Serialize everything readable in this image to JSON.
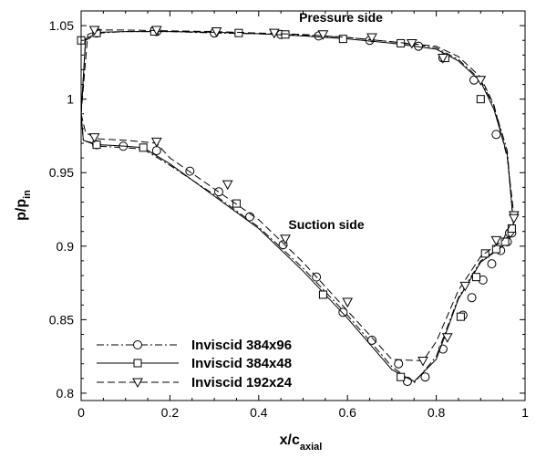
{
  "chart_data": {
    "type": "line",
    "xlabel_main": "x/c",
    "xlabel_sub": "axial",
    "ylabel_main": "p/p",
    "ylabel_sub": "in",
    "xlim": [
      0,
      1
    ],
    "ylim": [
      0.795,
      1.06
    ],
    "xticks": [
      0,
      0.2,
      0.4,
      0.6,
      0.8,
      1
    ],
    "xtick_labels": [
      "0",
      "0.2",
      "0.4",
      "0.6",
      "0.8",
      "1"
    ],
    "yticks": [
      0.8,
      0.85,
      0.9,
      0.95,
      1,
      1.05
    ],
    "ytick_labels": [
      "0.8",
      "0.85",
      "0.9",
      "0.95",
      "1",
      "1.05"
    ],
    "grid": false,
    "legend_position": "bottom-left",
    "annotations": [
      {
        "text": "Pressure side",
        "x": 0.45,
        "y": 1.0535
      },
      {
        "text": "Suction side",
        "x": 0.41,
        "y": 0.9275
      }
    ],
    "series": [
      {
        "name": "Inviscid 384x96",
        "line": "dashdot",
        "marker": "circle",
        "pressure_side": {
          "x": [
            0.0,
            0.01,
            0.04,
            0.1,
            0.2,
            0.3,
            0.4,
            0.5,
            0.6,
            0.7,
            0.8,
            0.85,
            0.9,
            0.93,
            0.96,
            0.975
          ],
          "y": [
            0.99,
            1.04,
            1.045,
            1.046,
            1.046,
            1.045,
            1.0445,
            1.0435,
            1.042,
            1.039,
            1.035,
            1.027,
            1.013,
            0.995,
            0.965,
            0.91
          ]
        },
        "suction_side": {
          "x": [
            0.0,
            0.005,
            0.04,
            0.1,
            0.14,
            0.2,
            0.3,
            0.4,
            0.5,
            0.6,
            0.7,
            0.75,
            0.8,
            0.85,
            0.9,
            0.95,
            0.975
          ],
          "y": [
            0.99,
            0.972,
            0.968,
            0.967,
            0.966,
            0.955,
            0.935,
            0.913,
            0.885,
            0.853,
            0.818,
            0.807,
            0.825,
            0.865,
            0.89,
            0.9,
            0.908
          ]
        },
        "markers": {
          "x": [
            0.035,
            0.17,
            0.3,
            0.45,
            0.535,
            0.65,
            0.76,
            0.815,
            0.885,
            0.935,
            0.965,
            0.035,
            0.095,
            0.17,
            0.245,
            0.31,
            0.38,
            0.455,
            0.53,
            0.59,
            0.655,
            0.715,
            0.735,
            0.775,
            0.815,
            0.86,
            0.88,
            0.905,
            0.925,
            0.945,
            0.96,
            0.97
          ],
          "y": [
            1.045,
            1.046,
            1.045,
            1.044,
            1.043,
            1.04,
            1.036,
            1.028,
            1.013,
            0.976,
            0.909,
            0.969,
            0.968,
            0.965,
            0.951,
            0.937,
            0.92,
            0.901,
            0.879,
            0.855,
            0.836,
            0.82,
            0.808,
            0.811,
            0.83,
            0.853,
            0.865,
            0.877,
            0.888,
            0.897,
            0.903,
            0.909
          ]
        }
      },
      {
        "name": "Inviscid 384x48",
        "line": "solid",
        "marker": "square",
        "pressure_side": {
          "x": [
            0.0,
            0.01,
            0.04,
            0.1,
            0.2,
            0.3,
            0.4,
            0.5,
            0.6,
            0.7,
            0.8,
            0.85,
            0.9,
            0.93,
            0.96,
            0.975
          ],
          "y": [
            0.99,
            1.041,
            1.0455,
            1.046,
            1.046,
            1.0455,
            1.0445,
            1.043,
            1.041,
            1.038,
            1.034,
            1.026,
            1.012,
            0.993,
            0.962,
            0.911
          ]
        },
        "suction_side": {
          "x": [
            0.0,
            0.005,
            0.04,
            0.1,
            0.14,
            0.2,
            0.3,
            0.4,
            0.5,
            0.6,
            0.7,
            0.75,
            0.8,
            0.85,
            0.9,
            0.95,
            0.975
          ],
          "y": [
            0.99,
            0.972,
            0.969,
            0.968,
            0.967,
            0.956,
            0.934,
            0.912,
            0.883,
            0.851,
            0.816,
            0.808,
            0.823,
            0.864,
            0.889,
            0.9,
            0.909
          ]
        },
        "markers": {
          "x": [
            0.0,
            0.035,
            0.165,
            0.355,
            0.46,
            0.59,
            0.72,
            0.82,
            0.9,
            0.97,
            0.035,
            0.14,
            0.35,
            0.545,
            0.72,
            0.855,
            0.89,
            0.91,
            0.935,
            0.955
          ],
          "y": [
            1.04,
            1.045,
            1.046,
            1.045,
            1.044,
            1.041,
            1.038,
            1.028,
            1.0,
            0.912,
            0.969,
            0.967,
            0.929,
            0.867,
            0.811,
            0.852,
            0.879,
            0.895,
            0.898,
            0.903
          ]
        }
      },
      {
        "name": "Inviscid 192x24",
        "line": "dashed",
        "marker": "triangle-down",
        "pressure_side": {
          "x": [
            0.0,
            0.015,
            0.04,
            0.1,
            0.2,
            0.3,
            0.4,
            0.5,
            0.6,
            0.7,
            0.8,
            0.85,
            0.9,
            0.93,
            0.96,
            0.975
          ],
          "y": [
            0.99,
            1.044,
            1.047,
            1.047,
            1.0465,
            1.046,
            1.045,
            1.044,
            1.042,
            1.039,
            1.036,
            1.029,
            1.015,
            0.996,
            0.96,
            0.921
          ]
        },
        "suction_side": {
          "x": [
            0.0,
            0.01,
            0.04,
            0.1,
            0.17,
            0.2,
            0.3,
            0.4,
            0.5,
            0.6,
            0.7,
            0.77,
            0.8,
            0.85,
            0.9,
            0.95,
            0.975
          ],
          "y": [
            0.99,
            0.977,
            0.973,
            0.972,
            0.97,
            0.96,
            0.939,
            0.918,
            0.889,
            0.856,
            0.823,
            0.822,
            0.835,
            0.87,
            0.893,
            0.904,
            0.92
          ]
        },
        "markers": {
          "x": [
            0.03,
            0.17,
            0.305,
            0.435,
            0.545,
            0.655,
            0.745,
            0.815,
            0.9,
            0.975,
            0.03,
            0.17,
            0.33,
            0.46,
            0.6,
            0.77,
            0.825,
            0.865,
            0.935,
            0.975
          ],
          "y": [
            1.047,
            1.047,
            1.046,
            1.045,
            1.044,
            1.042,
            1.038,
            1.028,
            1.013,
            0.921,
            0.974,
            0.971,
            0.942,
            0.905,
            0.862,
            0.822,
            0.838,
            0.873,
            0.904,
            0.919
          ]
        }
      }
    ]
  }
}
